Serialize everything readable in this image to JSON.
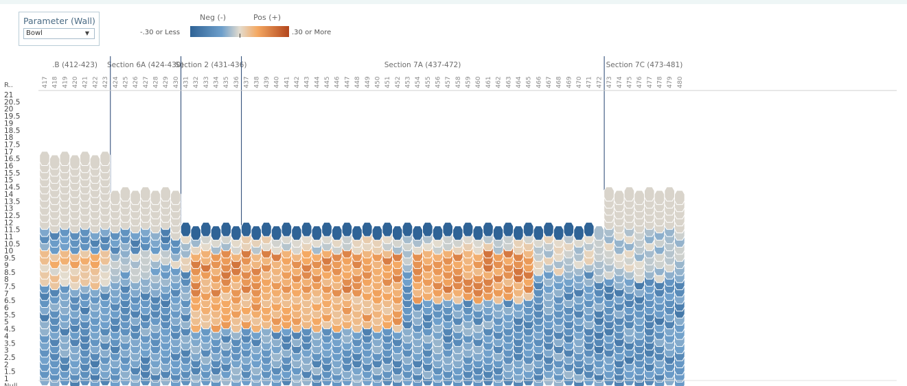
{
  "parameter": {
    "title": "Parameter (Wall)",
    "selected": "Bowl"
  },
  "legend": {
    "neg_label": "Neg (-)",
    "pos_label": "Pos (+)",
    "min_label": "-.30 or Less",
    "max_label": ".30 or More",
    "colors": [
      "#2f6396",
      "#6e9fcb",
      "#e3dccf",
      "#f4a862",
      "#b3461c"
    ]
  },
  "chart_data": {
    "type": "heatmap",
    "row_header": "R..",
    "null_label": "Null",
    "y_ticks": [
      "21",
      "20.5",
      "20",
      "19.5",
      "19",
      "18.5",
      "18",
      "17.5",
      "17",
      "16.5",
      "16",
      "15.5",
      "15",
      "14.5",
      "14",
      "13.5",
      "13",
      "12.5",
      "12",
      "11.5",
      "11",
      "10.5",
      "10",
      "9.5",
      "9",
      "8.5",
      "8",
      "7.5",
      "7",
      "6.5",
      "6",
      "5.5",
      "5",
      "4.5",
      "4",
      "3.5",
      "3",
      "2.5",
      "2",
      "1.5",
      "1"
    ],
    "sections": [
      {
        "label": ".B (412-423)",
        "first": 417,
        "last": 423,
        "top_row": 16.5
      },
      {
        "label": "Section 6A (424-430)",
        "first": 424,
        "last": 430,
        "top_row": 14
      },
      {
        "label": "Section 2 (431-436)",
        "first": 431,
        "last": 436,
        "top_row": 11.5
      },
      {
        "label": "Section 7A (437-472)",
        "first": 437,
        "last": 472,
        "top_row": 11.5
      },
      {
        "label": "Section 7C (473-481)",
        "first": 473,
        "last": 480,
        "top_row": 14
      }
    ],
    "column_labels": [
      "417",
      "418",
      "419",
      "420",
      "421",
      "422",
      "423",
      "424",
      "425",
      "426",
      "427",
      "428",
      "429",
      "430",
      "431",
      "432",
      "433",
      "434",
      "435",
      "436",
      "437",
      "438",
      "439",
      "440",
      "441",
      "442",
      "443",
      "444",
      "445",
      "446",
      "447",
      "448",
      "449",
      "450",
      "451",
      "452",
      "453",
      "454",
      "455",
      "456",
      "457",
      "458",
      "459",
      "460",
      "461",
      "462",
      "463",
      "464",
      "465",
      "466",
      "467",
      "468",
      "469",
      "470",
      "471",
      "472",
      "473",
      "474",
      "475",
      "476",
      "477",
      "478",
      "479",
      "480"
    ],
    "value_range": [
      -0.3,
      0.3
    ],
    "color_scale": "diverging blue (negative) to orange (positive)",
    "notes": "Values estimated from cell colors; rows 1 to 21 in 0.5 steps"
  }
}
